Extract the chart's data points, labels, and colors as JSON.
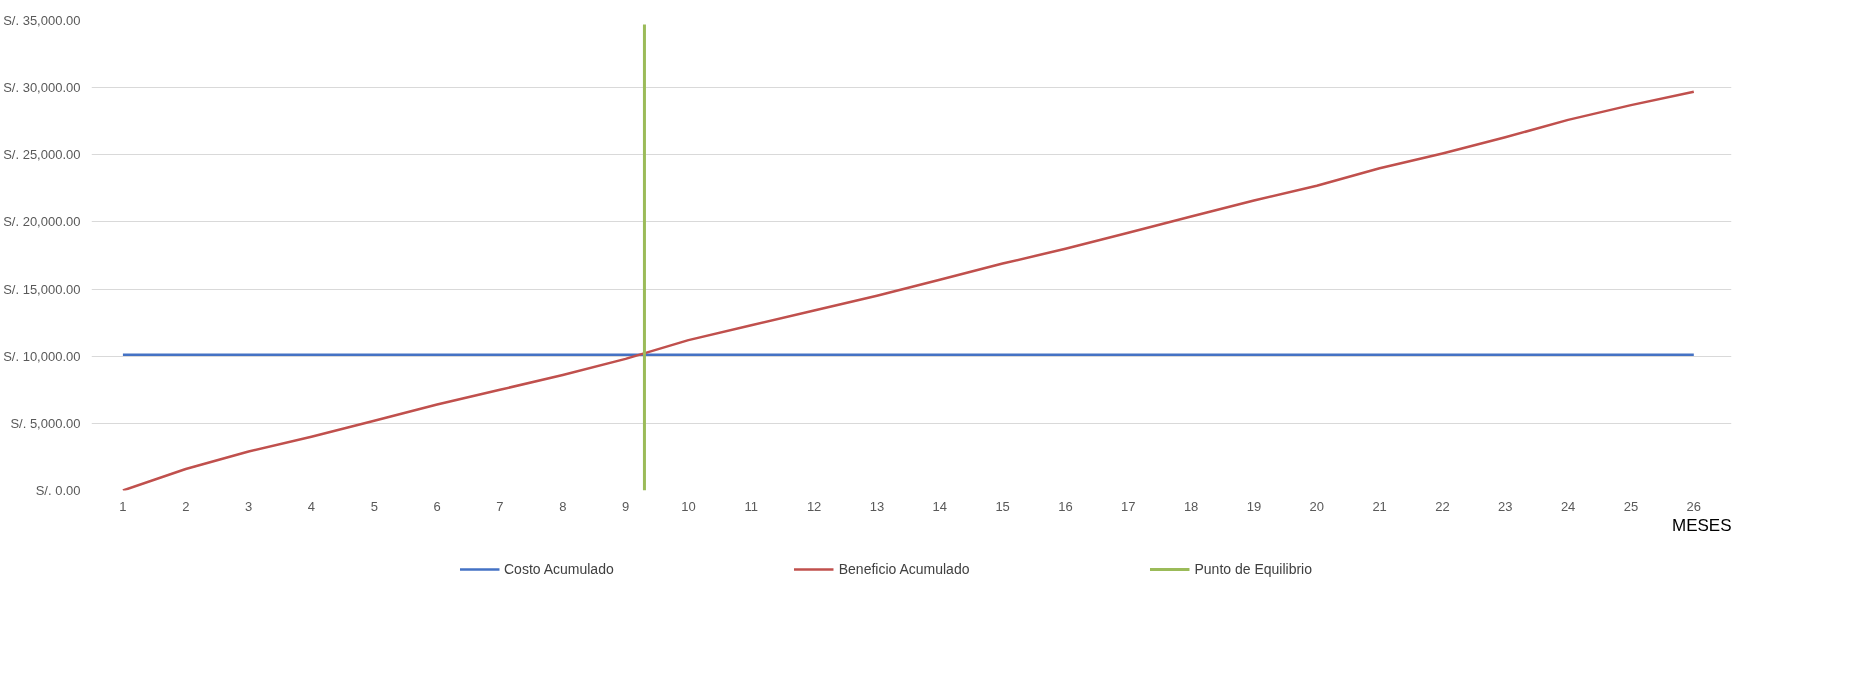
{
  "chart_data": {
    "type": "line",
    "xlabel": "MESES",
    "x": [
      1,
      2,
      3,
      4,
      5,
      6,
      7,
      8,
      9,
      10,
      11,
      12,
      13,
      14,
      15,
      16,
      17,
      18,
      19,
      20,
      21,
      22,
      23,
      24,
      25,
      26
    ],
    "xlim": [
      0.5,
      26.6
    ],
    "xticks": [
      1,
      2,
      3,
      4,
      5,
      6,
      7,
      8,
      9,
      10,
      11,
      12,
      13,
      14,
      15,
      16,
      17,
      18,
      19,
      20,
      21,
      22,
      23,
      24,
      25,
      26
    ],
    "ylim": [
      0,
      35000
    ],
    "yticks": [
      {
        "value": 0,
        "label": "S/. 0.00"
      },
      {
        "value": 5000,
        "label": "S/. 5,000.00"
      },
      {
        "value": 10000,
        "label": "S/. 10,000.00"
      },
      {
        "value": 15000,
        "label": "S/. 15,000.00"
      },
      {
        "value": 20000,
        "label": "S/. 20,000.00"
      },
      {
        "value": 25000,
        "label": "S/. 25,000.00"
      },
      {
        "value": 30000,
        "label": "S/. 30,000.00"
      },
      {
        "value": 35000,
        "label": "S/. 35,000.00"
      }
    ],
    "grid": "y",
    "legend": "bottom",
    "marker": "none",
    "line_style": "solid",
    "series": [
      {
        "name": "Costo Acumulado",
        "color": "#4472c4",
        "values": [
          10100,
          10100,
          10100,
          10100,
          10100,
          10100,
          10100,
          10100,
          10100,
          10100,
          10100,
          10100,
          10100,
          10100,
          10100,
          10100,
          10100,
          10100,
          10100,
          10100,
          10100,
          10100,
          10100,
          10100,
          10100,
          10100
        ]
      },
      {
        "name": "Beneficio Acumulado",
        "color": "#c0504d",
        "values": [
          0,
          1600,
          2900,
          4000,
          5200,
          6400,
          7500,
          8600,
          9800,
          11200,
          12300,
          13400,
          14500,
          15700,
          16900,
          18000,
          19200,
          20400,
          21600,
          22700,
          24000,
          25100,
          26300,
          27600,
          28700,
          29700
        ]
      },
      {
        "name": "Punto de Equilibrio",
        "color": "#9bbb59",
        "x": [
          9.3,
          9.3
        ],
        "values": [
          0,
          34700
        ]
      }
    ]
  }
}
